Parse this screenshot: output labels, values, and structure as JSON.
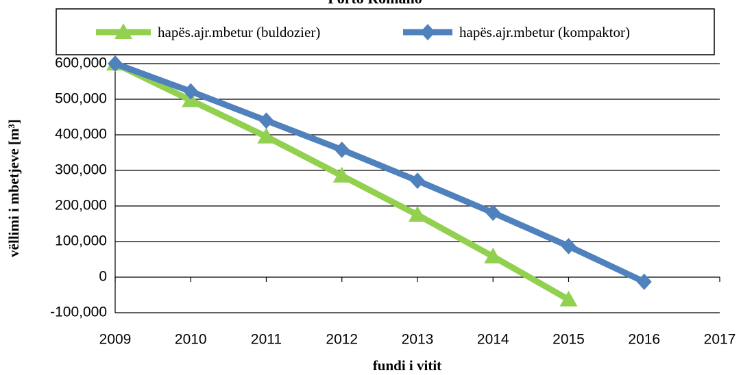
{
  "chart_data": {
    "type": "line",
    "title": "Porto Romano",
    "x": [
      2009,
      2010,
      2011,
      2012,
      2013,
      2014,
      2015,
      2016
    ],
    "series": [
      {
        "name": "hapës.ajr.mbetur (buldozier)",
        "color": "#92d050",
        "marker": "triangle",
        "values": [
          600000,
          497000,
          395000,
          285000,
          175000,
          58000,
          -63000,
          null
        ]
      },
      {
        "name": "hapës.ajr.mbetur (kompaktor)",
        "color": "#4f81bd",
        "marker": "diamond",
        "values": [
          600000,
          522000,
          440000,
          358000,
          271000,
          181000,
          87000,
          -13000
        ]
      }
    ],
    "xlabel": "fundi i vitit",
    "ylabel": "vëllimi i mbetjeve [m³]",
    "xlim": [
      2009,
      2017
    ],
    "xticks": [
      2009,
      2010,
      2011,
      2012,
      2013,
      2014,
      2015,
      2016,
      2017
    ],
    "ylim": [
      -100000,
      600000
    ],
    "yticks": [
      {
        "value": -100000,
        "label": "-100,000"
      },
      0,
      {
        "value": 100000,
        "label": "100,000"
      },
      {
        "value": 200000,
        "label": "200,000"
      },
      {
        "value": 300000,
        "label": "300,000"
      },
      {
        "value": 400000,
        "label": "400,000"
      },
      {
        "value": 500000,
        "label": "500,000"
      },
      {
        "value": 600000,
        "label": "600,000"
      }
    ],
    "grid": true,
    "legend": "top"
  }
}
